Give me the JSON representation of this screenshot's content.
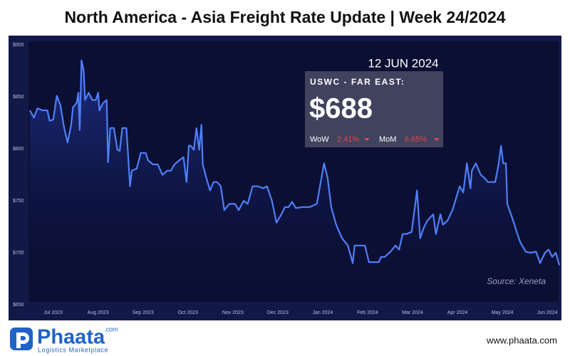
{
  "chart_data": {
    "type": "line",
    "title": "North America - Asia Freight Rate Update | Week 24/2024",
    "series": [
      {
        "name": "USWC - FAR EAST",
        "color": "#4f7ff7",
        "x": [
          -0.52,
          -0.43,
          -0.35,
          -0.24,
          -0.13,
          -0.08,
          0,
          0.08,
          0.16,
          0.24,
          0.32,
          0.4,
          0.44,
          0.52,
          0.56,
          0.59,
          0.63,
          0.68,
          0.71,
          0.79,
          0.87,
          0.95,
          1.0,
          1.03,
          1.11,
          1.19,
          1.22,
          1.27,
          1.35,
          1.43,
          1.48,
          1.54,
          1.63,
          1.71,
          1.75,
          1.86,
          1.95,
          2.06,
          2.11,
          2.22,
          2.33,
          2.43,
          2.54,
          2.62,
          2.7,
          2.81,
          2.9,
          2.97,
          3.02,
          3.06,
          3.13,
          3.19,
          3.25,
          3.3,
          3.33,
          3.41,
          3.49,
          3.57,
          3.65,
          3.73,
          3.81,
          3.92,
          4.05,
          4.13,
          4.24,
          4.33,
          4.44,
          4.56,
          4.68,
          4.76,
          4.87,
          4.97,
          5.08,
          5.16,
          5.24,
          5.32,
          5.4,
          5.56,
          5.71,
          5.87,
          6.03,
          6.11,
          6.19,
          6.3,
          6.43,
          6.56,
          6.67,
          6.71,
          6.83,
          6.94,
          7.03,
          7.14,
          7.25,
          7.3,
          7.38,
          7.51,
          7.62,
          7.7,
          7.78,
          7.86,
          7.98,
          8.1,
          8.17,
          8.25,
          8.33,
          8.46,
          8.52,
          8.62,
          8.68,
          8.78,
          8.89,
          9.05,
          9.13,
          9.21,
          9.29,
          9.32,
          9.41,
          9.52,
          9.6,
          9.68,
          9.84,
          9.92,
          9.97,
          10.02,
          10.08,
          10.11,
          10.24,
          10.32,
          10.4,
          10.52,
          10.63,
          10.75,
          10.84,
          10.95,
          11.03,
          11.11,
          11.19,
          11.27
        ],
        "values": [
          837,
          830,
          839,
          837,
          837,
          827,
          828,
          851,
          842,
          821,
          806,
          823,
          840,
          844,
          854,
          818,
          885,
          875,
          847,
          854,
          847,
          847,
          854,
          837,
          844,
          847,
          787,
          820,
          820,
          799,
          798,
          820,
          820,
          764,
          779,
          781,
          796,
          796,
          789,
          785,
          785,
          775,
          779,
          779,
          785,
          789,
          792,
          768,
          803,
          803,
          799,
          820,
          799,
          823,
          785,
          772,
          760,
          768,
          768,
          764,
          741,
          747,
          747,
          741,
          750,
          747,
          764,
          764,
          762,
          764,
          750,
          729,
          737,
          744,
          744,
          749,
          743,
          744,
          744,
          747,
          786,
          772,
          744,
          727,
          714,
          707,
          690,
          707,
          707,
          707,
          691,
          691,
          691,
          696,
          696,
          701,
          707,
          703,
          718,
          718,
          720,
          760,
          714,
          724,
          731,
          737,
          718,
          737,
          727,
          731,
          741,
          764,
          758,
          786,
          762,
          779,
          786,
          775,
          772,
          768,
          768,
          786,
          803,
          786,
          786,
          747,
          731,
          720,
          710,
          701,
          700,
          701,
          690,
          700,
          703,
          696,
          700,
          688
        ]
      }
    ],
    "xlim": [
      -0.55,
      11.3
    ],
    "xticks": [
      {
        "value": 0,
        "label": "Jul 2023"
      },
      {
        "value": 1,
        "label": "Aug 2023"
      },
      {
        "value": 2,
        "label": "Sep 2023"
      },
      {
        "value": 3,
        "label": "Oct 2023"
      },
      {
        "value": 4,
        "label": "Nov 2023"
      },
      {
        "value": 5,
        "label": "Dec 2023"
      },
      {
        "value": 6,
        "label": "Jan 2024"
      },
      {
        "value": 7,
        "label": "Feb 2024"
      },
      {
        "value": 8,
        "label": "Mar 2024"
      },
      {
        "value": 9,
        "label": "Apr 2024"
      },
      {
        "value": 10,
        "label": "May 2024"
      },
      {
        "value": 11,
        "label": "Jun 2024"
      }
    ],
    "ylim": [
      650,
      900
    ],
    "yticks": [
      {
        "value": 650,
        "label": "$650"
      },
      {
        "value": 700,
        "label": "$700"
      },
      {
        "value": 750,
        "label": "$750"
      },
      {
        "value": 800,
        "label": "$800"
      },
      {
        "value": 850,
        "label": "$850"
      },
      {
        "value": 900,
        "label": "$900"
      }
    ],
    "annotations": {
      "date": "12 JUN 2024",
      "route": "USWC - FAR EAST:",
      "price": "$688",
      "wow_label": "WoW",
      "wow_value": "2.41%",
      "mom_label": "MoM",
      "mom_value": "6.65%",
      "source": "Source: Xeneta"
    }
  },
  "footer": {
    "brand": "Phaata",
    "domain": ".com",
    "tagline": "Logistics Marketplace",
    "url": "www.phaata.com"
  }
}
